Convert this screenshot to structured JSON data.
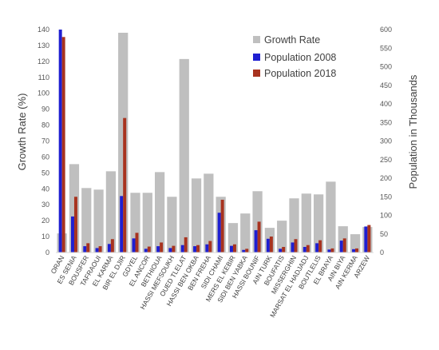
{
  "chart_data": {
    "type": "bar",
    "ylabel": "Growth Rate (%)",
    "y2label": "Population in Thousands",
    "ylim": [
      0,
      140
    ],
    "y2lim": [
      0,
      600
    ],
    "yticks": [
      0,
      10,
      20,
      30,
      40,
      50,
      60,
      70,
      80,
      90,
      100,
      110,
      120,
      130,
      140
    ],
    "y2ticks": [
      0,
      50,
      100,
      150,
      200,
      250,
      300,
      350,
      400,
      450,
      500,
      550,
      600
    ],
    "grid": false,
    "legend_position": "top-right",
    "categories": [
      "ORAN",
      "ES SENIA",
      "BOUSFER",
      "TAFRAOUI",
      "EL KARMA",
      "BIR EL DJIR",
      "GDYEL",
      "EL ANCOR",
      "BETHIOUA",
      "HASSI MEFSOUKH",
      "OUED TLELAT",
      "HASSI BEN OKBA",
      "BEN FREHA",
      "SIDI CHAMI",
      "MERS EL KEBIR",
      "SIDI BEN YABKA",
      "HASSI BOUNIF",
      "AIN TURK",
      "BOUFATIS",
      "MISSERGHIN",
      "MARSAT EL HADJADJ",
      "BOUTLELIS",
      "EL BRAYA",
      "AIN BIYA",
      "AIN KERMA",
      "ARZEW"
    ],
    "series": [
      {
        "name": "Growth Rate",
        "axis": "left",
        "color": "#bfbfbf",
        "values": [
          12,
          55.5,
          40.5,
          39.5,
          51,
          138,
          37.5,
          37.5,
          50.5,
          35,
          121.5,
          46.5,
          49.5,
          35,
          18.5,
          24.5,
          38.5,
          15.5,
          20,
          34,
          37,
          36.5,
          44.5,
          16.5,
          11.5,
          16
        ]
      },
      {
        "name": "Population 2008",
        "axis": "right",
        "color": "#1f1fd1",
        "values": [
          600,
          97,
          17,
          12,
          23,
          152,
          38,
          10,
          17,
          12,
          20,
          17,
          22,
          107,
          18,
          7,
          60,
          37,
          10,
          27,
          15,
          25,
          8,
          32,
          9,
          70
        ]
      },
      {
        "name": "Population 2018",
        "axis": "right",
        "color": "#a8331f",
        "values": [
          580,
          150,
          25,
          17,
          36,
          362,
          53,
          16,
          27,
          18,
          41,
          20,
          31,
          142,
          22,
          10,
          83,
          43,
          15,
          36,
          20,
          33,
          11,
          38,
          11,
          74
        ]
      }
    ]
  }
}
